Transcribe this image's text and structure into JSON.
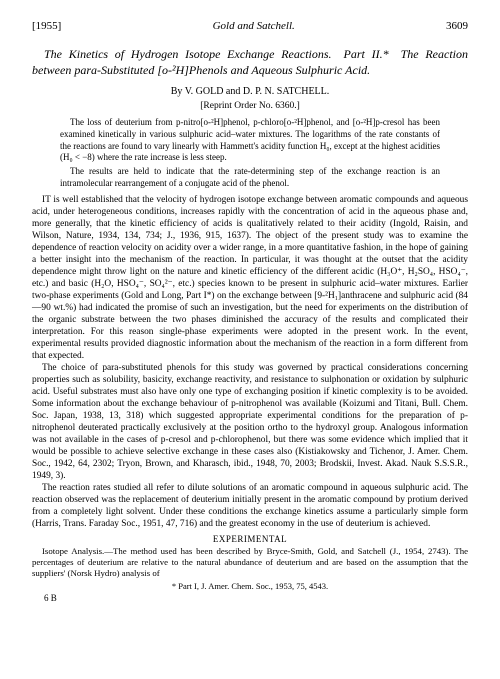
{
  "header": {
    "year": "[1955]",
    "running": "Gold and Satchell.",
    "pagenum": "3609"
  },
  "title_line1": "The Kinetics of Hydrogen Isotope Exchange Reactions. Part II.* The",
  "title_line2": "Reaction between para-Substituted [o-²H]Phenols and Aqueous Sulphuric",
  "title_line3": "Acid.",
  "authors": "By V. GOLD and D. P. N. SATCHELL.",
  "reprint": "[Reprint Order No. 6360.]",
  "abstract": {
    "p1": "The loss of deuterium from p-nitro[o-²H]phenol, p-chloro[o-²H]phenol, and [o-²H]p-cresol has been examined kinetically in various sulphuric acid–water mixtures. The logarithms of the rate constants of the reactions are found to vary linearly with Hammett's acidity function H₀, except at the highest acidities (H₀ < −8) where the rate increase is less steep.",
    "p2": "The results are held to indicate that the rate-determining step of the exchange reaction is an intramolecular rearrangement of a conjugate acid of the phenol."
  },
  "body": {
    "p1": "IT is well established that the velocity of hydrogen isotope exchange between aromatic compounds and aqueous acid, under heterogeneous conditions, increases rapidly with the concentration of acid in the aqueous phase and, more generally, that the kinetic efficiency of acids is qualitatively related to their acidity (Ingold, Raisin, and Wilson, Nature, 1934, 134, 734; J., 1936, 915, 1637). The object of the present study was to examine the dependence of reaction velocity on acidity over a wider range, in a more quantitative fashion, in the hope of gaining a better insight into the mechanism of the reaction. In particular, it was thought at the outset that the acidity dependence might throw light on the nature and kinetic efficiency of the different acidic (H₃O⁺, H₂SO₄, HSO₄⁻, etc.) and basic (H₂O, HSO₄⁻, SO₄²⁻, etc.) species known to be present in sulphuric acid–water mixtures. Earlier two-phase experiments (Gold and Long, Part I*) on the exchange between [9-²H₁]anthracene and sulphuric acid (84—90 wt.%) had indicated the promise of such an investigation, but the need for experiments on the distribution of the organic substrate between the two phases diminished the accuracy of the results and complicated their interpretation. For this reason single-phase experiments were adopted in the present work. In the event, experimental results provided diagnostic information about the mechanism of the reaction in a form different from that expected.",
    "p2": "The choice of para-substituted phenols for this study was governed by practical considerations concerning properties such as solubility, basicity, exchange reactivity, and resistance to sulphonation or oxidation by sulphuric acid. Useful substrates must also have only one type of exchanging position if kinetic complexity is to be avoided. Some information about the exchange behaviour of p-nitrophenol was available (Koizumi and Titani, Bull. Chem. Soc. Japan, 1938, 13, 318) which suggested appropriate experimental conditions for the preparation of p-nitrophenol deuterated practically exclusively at the position ortho to the hydroxyl group. Analogous information was not available in the cases of p-cresol and p-chlorophenol, but there was some evidence which implied that it would be possible to achieve selective exchange in these cases also (Kistiakowsky and Tichenor, J. Amer. Chem. Soc., 1942, 64, 2302; Tryon, Brown, and Kharasch, ibid., 1948, 70, 2003; Brodskii, Invest. Akad. Nauk S.S.S.R., 1949, 3).",
    "p3": "The reaction rates studied all refer to dilute solutions of an aromatic compound in aqueous sulphuric acid. The reaction observed was the replacement of deuterium initially present in the aromatic compound by protium derived from a completely light solvent. Under these conditions the exchange kinetics assume a particularly simple form (Harris, Trans. Faraday Soc., 1951, 47, 716) and the greatest economy in the use of deuterium is achieved."
  },
  "exp_head": "EXPERIMENTAL",
  "experimental": {
    "p1": "Isotope Analysis.—The method used has been described by Bryce-Smith, Gold, and Satchell (J., 1954, 2743). The percentages of deuterium are relative to the natural abundance of deuterium and are based on the assumption that the suppliers' (Norsk Hydro) analysis of"
  },
  "footnote": "* Part I, J. Amer. Chem. Soc., 1953, 75, 4543.",
  "sig": "6 B"
}
